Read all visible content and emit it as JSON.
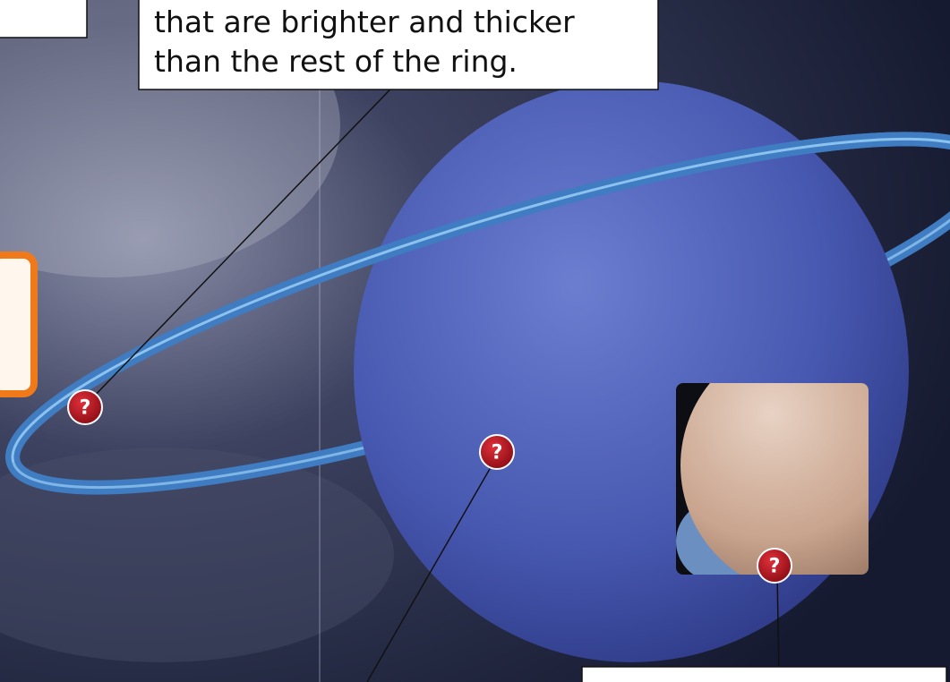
{
  "callout_top": {
    "lines": [
      "that are brighter and thicker",
      "than the rest of the ring."
    ]
  },
  "hotspots": [
    {
      "label": "?"
    },
    {
      "label": "?"
    },
    {
      "label": "?"
    }
  ]
}
